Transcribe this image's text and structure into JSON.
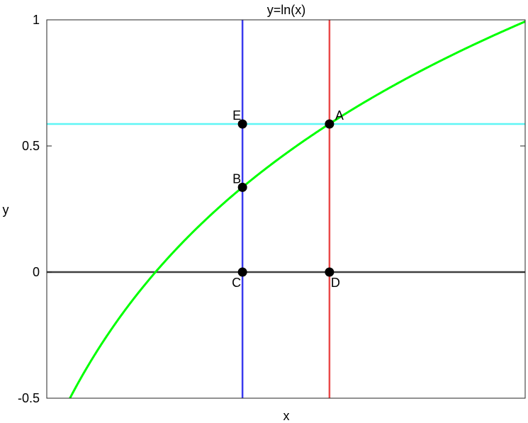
{
  "chart_data": {
    "type": "line",
    "title": "y=ln(x)",
    "xlabel": "x",
    "ylabel": "y",
    "xlim": [
      0.5,
      2.7
    ],
    "ylim": [
      -0.5,
      1
    ],
    "y_ticks": [
      -0.5,
      0,
      0.5,
      1
    ],
    "y_tick_labels": [
      "-0.5",
      "0",
      "0.5",
      "1"
    ],
    "x_ticks": [],
    "grid": false,
    "box": true,
    "series": [
      {
        "function": "ln(x)",
        "color": "#00ff00",
        "x_range": [
          0.606,
          2.718
        ]
      }
    ],
    "reference_lines": [
      {
        "orientation": "horizontal",
        "value": 0,
        "color": "#404040"
      },
      {
        "orientation": "horizontal",
        "value": 0.587,
        "color": "#5ff5f5"
      },
      {
        "orientation": "vertical",
        "value": 1.4,
        "color": "#3a3aef"
      },
      {
        "orientation": "vertical",
        "value": 1.8,
        "color": "#ea4a4a"
      }
    ],
    "points": [
      {
        "label": "A",
        "x": 1.8,
        "y": 0.587,
        "label_position": "upper-right"
      },
      {
        "label": "B",
        "x": 1.4,
        "y": 0.336,
        "label_position": "upper-left"
      },
      {
        "label": "C",
        "x": 1.4,
        "y": 0,
        "label_position": "lower-left"
      },
      {
        "label": "D",
        "x": 1.8,
        "y": 0,
        "label_position": "lower-right"
      },
      {
        "label": "E",
        "x": 1.4,
        "y": 0.587,
        "label_position": "upper-left"
      }
    ],
    "point_color": "#000000"
  }
}
